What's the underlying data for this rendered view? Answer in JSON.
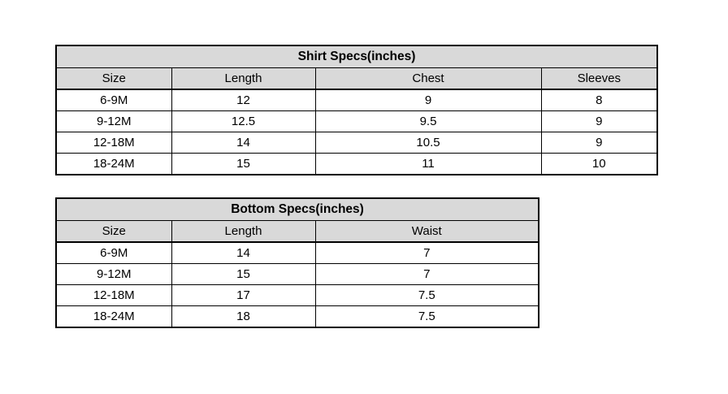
{
  "colors": {
    "header_bg": "#d9d9d9",
    "border": "#000000",
    "text": "#000000",
    "page_bg": "#ffffff"
  },
  "tables": [
    {
      "title": "Shirt Specs(inches)",
      "columns": [
        "Size",
        "Length",
        "Chest",
        "Sleeves"
      ],
      "rows": [
        [
          "6-9M",
          "12",
          "9",
          "8"
        ],
        [
          "9-12M",
          "12.5",
          "9.5",
          "9"
        ],
        [
          "12-18M",
          "14",
          "10.5",
          "9"
        ],
        [
          "18-24M",
          "15",
          "11",
          "10"
        ]
      ]
    },
    {
      "title": "Bottom Specs(inches)",
      "columns": [
        "Size",
        "Length",
        "Waist"
      ],
      "rows": [
        [
          "6-9M",
          "14",
          "7"
        ],
        [
          "9-12M",
          "15",
          "7"
        ],
        [
          "12-18M",
          "17",
          "7.5"
        ],
        [
          "18-24M",
          "18",
          "7.5"
        ]
      ]
    }
  ]
}
